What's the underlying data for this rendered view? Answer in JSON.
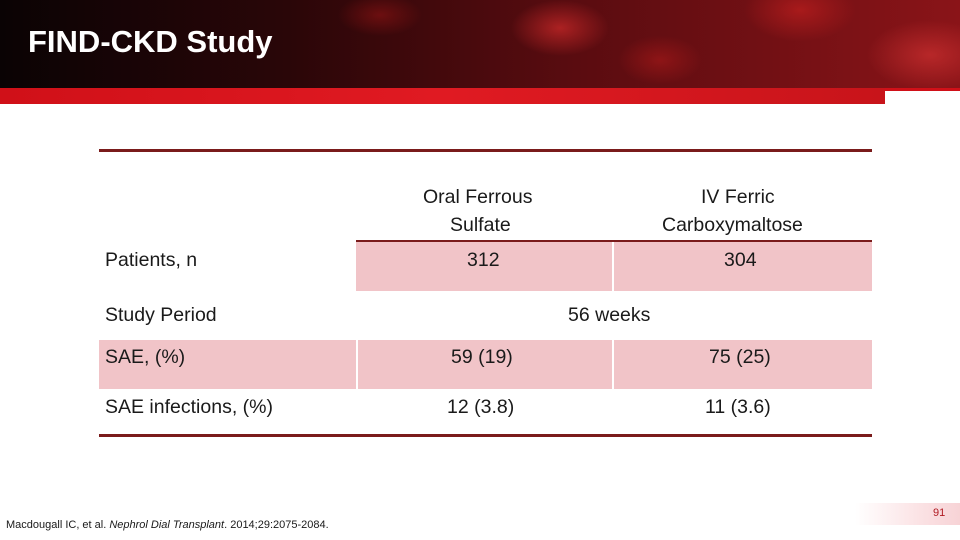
{
  "slide": {
    "title": "FIND-CKD Study",
    "page_number": "91"
  },
  "table": {
    "columns": [
      "",
      "Oral Ferrous Sulfate",
      "IV Ferric Carboxymaltose"
    ],
    "col1_header": {
      "line1": "Oral Ferrous",
      "line2": "Sulfate"
    },
    "col2_header": {
      "line1": "IV Ferric",
      "line2": "Carboxymaltose"
    },
    "rows": [
      {
        "label": "Patients, n",
        "oral": "312",
        "iv": "304"
      },
      {
        "label": "Study Period",
        "merged": "56 weeks"
      },
      {
        "label": "SAE, (%)",
        "oral": "59 (19)",
        "iv": "75 (25)"
      },
      {
        "label": "SAE infections, (%)",
        "oral": "12 (3.8)",
        "iv": "11 (3.6)"
      }
    ]
  },
  "footnote": {
    "authors": "Macdougall IC, et al.",
    "journal": "Nephrol Dial Transplant",
    "citation": ". 2014;29:2075-2084."
  },
  "colors": {
    "accent_red": "#d01018",
    "rule": "#7a1b1b",
    "row_fill": "#f1c4c8"
  }
}
